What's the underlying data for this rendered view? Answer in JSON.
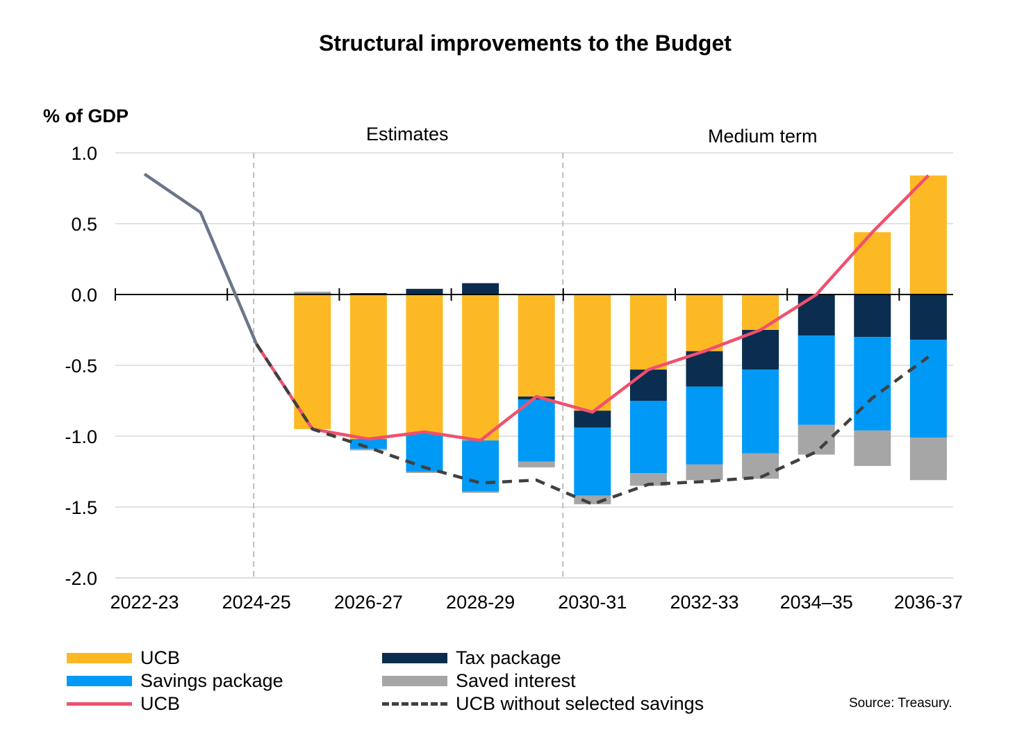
{
  "chart_data": {
    "type": "bar",
    "title": "Structural improvements to the Budget",
    "ylabel": "% of GDP",
    "xlabel": "",
    "ylim": [
      -2.0,
      1.0
    ],
    "yticks": [
      "1.0",
      "0.5",
      "0.0",
      "-0.5",
      "-1.0",
      "-1.5",
      "-2.0"
    ],
    "ytick_values": [
      1.0,
      0.5,
      0.0,
      -0.5,
      -1.0,
      -1.5,
      -2.0
    ],
    "x_tick_labels": [
      "2022-23",
      "2024-25",
      "2026-27",
      "2028-29",
      "2030-31",
      "2032-33",
      "2034–35",
      "2036-37"
    ],
    "categories": [
      "2022-23",
      "2023-24",
      "2024-25",
      "2025-26",
      "2026-27",
      "2027-28",
      "2028-29",
      "2029-30",
      "2030-31",
      "2031-32",
      "2032-33",
      "2033-34",
      "2034-35",
      "2035-36",
      "2036-37"
    ],
    "region_labels": [
      "Estimates",
      "Medium term"
    ],
    "grid": true,
    "legend_position": "bottom",
    "stacked_series": [
      {
        "name": "UCB",
        "color": "#FDB924",
        "values": [
          null,
          null,
          null,
          0.0,
          0.0,
          0.0,
          0.0,
          -0.72,
          -0.82,
          -0.53,
          -0.4,
          -0.25,
          0.0,
          0.44,
          0.84
        ]
      },
      {
        "name": "Tax package",
        "color": "#0B2D4F",
        "values": [
          null,
          null,
          null,
          0.0,
          0.01,
          0.04,
          0.08,
          -0.02,
          -0.12,
          -0.22,
          -0.25,
          -0.28,
          -0.29,
          -0.3,
          -0.32
        ]
      },
      {
        "name": "Savings package",
        "color": "#0099F5",
        "values": [
          null,
          null,
          null,
          0.01,
          -0.07,
          -0.27,
          -0.36,
          -0.44,
          -0.48,
          -0.51,
          -0.55,
          -0.59,
          -0.63,
          -0.66,
          -0.69
        ]
      },
      {
        "name": "Saved interest",
        "color": "#A6A6A6",
        "values": [
          null,
          null,
          null,
          0.01,
          -0.01,
          -0.01,
          -0.01,
          -0.04,
          -0.06,
          -0.09,
          -0.11,
          -0.18,
          -0.21,
          -0.25,
          -0.3
        ]
      }
    ],
    "negative_ucb_values": [
      null,
      null,
      null,
      -0.95,
      -1.02,
      -0.98,
      -1.03,
      null,
      null,
      null,
      null,
      null,
      null,
      null,
      null
    ],
    "line_series": [
      {
        "name": "UCB",
        "color": "#F0506E",
        "values": [
          null,
          null,
          -0.35,
          -0.95,
          -1.02,
          -0.97,
          -1.03,
          -0.72,
          -0.83,
          -0.53,
          -0.4,
          -0.25,
          0.0,
          0.44,
          0.84
        ]
      },
      {
        "name": "UCB without selected savings",
        "color": "#404040",
        "values": [
          null,
          null,
          -0.35,
          -0.95,
          -1.08,
          -1.22,
          -1.33,
          -1.31,
          -1.48,
          -1.34,
          -1.32,
          -1.29,
          -1.11,
          -0.73,
          -0.44
        ]
      },
      {
        "name": "",
        "color": "#6B7689",
        "values": [
          0.85,
          0.58,
          -0.35,
          null,
          null,
          null,
          null,
          null,
          null,
          null,
          null,
          null,
          null,
          null,
          null
        ]
      }
    ]
  },
  "legend": {
    "ucb_bar": "UCB",
    "savings": "Savings package",
    "ucb_line": "UCB",
    "tax": "Tax package",
    "interest": "Saved interest",
    "without": "UCB without selected savings"
  },
  "source": "Source: Treasury."
}
